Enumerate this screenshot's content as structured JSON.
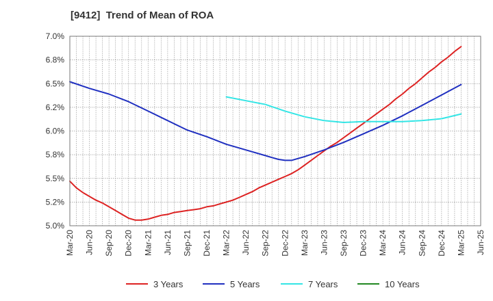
{
  "chart_data": {
    "type": "line",
    "title": "[9412]  Trend of Mean of ROA",
    "xlabel": "",
    "ylabel": "",
    "ylim": [
      5.0,
      7.0
    ],
    "y_ticks": [
      "5.0%",
      "5.2%",
      "5.5%",
      "5.8%",
      "6.0%",
      "6.2%",
      "6.5%",
      "6.8%",
      "7.0%"
    ],
    "x_ticks": [
      "Mar-20",
      "Jun-20",
      "Sep-20",
      "Dec-20",
      "Mar-21",
      "Jun-21",
      "Sep-21",
      "Dec-21",
      "Mar-22",
      "Jun-22",
      "Sep-22",
      "Dec-22",
      "Mar-23",
      "Jun-23",
      "Sep-23",
      "Dec-23",
      "Mar-24",
      "Jun-24",
      "Sep-24",
      "Dec-24",
      "Mar-25",
      "Jun-25"
    ],
    "grid": true,
    "legend_position": "bottom",
    "series": [
      {
        "name": "3 Years",
        "color": "#dd2222",
        "points": [
          [
            "Mar-20",
            5.47
          ],
          [
            "Apr-20",
            5.4
          ],
          [
            "May-20",
            5.35
          ],
          [
            "Jun-20",
            5.31
          ],
          [
            "Jul-20",
            5.27
          ],
          [
            "Aug-20",
            5.24
          ],
          [
            "Sep-20",
            5.2
          ],
          [
            "Oct-20",
            5.16
          ],
          [
            "Nov-20",
            5.12
          ],
          [
            "Dec-20",
            5.08
          ],
          [
            "Jan-21",
            5.06
          ],
          [
            "Feb-21",
            5.06
          ],
          [
            "Mar-21",
            5.07
          ],
          [
            "Apr-21",
            5.09
          ],
          [
            "May-21",
            5.11
          ],
          [
            "Jun-21",
            5.12
          ],
          [
            "Jul-21",
            5.14
          ],
          [
            "Aug-21",
            5.15
          ],
          [
            "Sep-21",
            5.16
          ],
          [
            "Oct-21",
            5.17
          ],
          [
            "Nov-21",
            5.18
          ],
          [
            "Dec-21",
            5.2
          ],
          [
            "Jan-22",
            5.21
          ],
          [
            "Feb-22",
            5.23
          ],
          [
            "Mar-22",
            5.25
          ],
          [
            "Apr-22",
            5.27
          ],
          [
            "May-22",
            5.3
          ],
          [
            "Jun-22",
            5.33
          ],
          [
            "Jul-22",
            5.36
          ],
          [
            "Aug-22",
            5.4
          ],
          [
            "Sep-22",
            5.43
          ],
          [
            "Oct-22",
            5.46
          ],
          [
            "Nov-22",
            5.49
          ],
          [
            "Dec-22",
            5.52
          ],
          [
            "Jan-23",
            5.55
          ],
          [
            "Feb-23",
            5.59
          ],
          [
            "Mar-23",
            5.64
          ],
          [
            "Apr-23",
            5.69
          ],
          [
            "May-23",
            5.74
          ],
          [
            "Jun-23",
            5.79
          ],
          [
            "Jul-23",
            5.84
          ],
          [
            "Aug-23",
            5.88
          ],
          [
            "Sep-23",
            5.93
          ],
          [
            "Oct-23",
            5.98
          ],
          [
            "Nov-23",
            6.03
          ],
          [
            "Dec-23",
            6.08
          ],
          [
            "Jan-24",
            6.13
          ],
          [
            "Feb-24",
            6.18
          ],
          [
            "Mar-24",
            6.23
          ],
          [
            "Apr-24",
            6.28
          ],
          [
            "May-24",
            6.34
          ],
          [
            "Jun-24",
            6.39
          ],
          [
            "Jul-24",
            6.45
          ],
          [
            "Aug-24",
            6.5
          ],
          [
            "Sep-24",
            6.56
          ],
          [
            "Oct-24",
            6.62
          ],
          [
            "Nov-24",
            6.67
          ],
          [
            "Dec-24",
            6.73
          ],
          [
            "Jan-25",
            6.78
          ],
          [
            "Feb-25",
            6.84
          ],
          [
            "Mar-25",
            6.89
          ]
        ]
      },
      {
        "name": "5 Years",
        "color": "#1f2fc0",
        "points": [
          [
            "Mar-20",
            6.52
          ],
          [
            "Jun-20",
            6.45
          ],
          [
            "Sep-20",
            6.39
          ],
          [
            "Dec-20",
            6.31
          ],
          [
            "Mar-21",
            6.21
          ],
          [
            "Jun-21",
            6.11
          ],
          [
            "Sep-21",
            6.01
          ],
          [
            "Dec-21",
            5.94
          ],
          [
            "Mar-22",
            5.86
          ],
          [
            "Jun-22",
            5.8
          ],
          [
            "Sep-22",
            5.74
          ],
          [
            "Oct-22",
            5.72
          ],
          [
            "Nov-22",
            5.7
          ],
          [
            "Dec-22",
            5.69
          ],
          [
            "Jan-23",
            5.69
          ],
          [
            "Feb-23",
            5.71
          ],
          [
            "Mar-23",
            5.73
          ],
          [
            "Jun-23",
            5.8
          ],
          [
            "Sep-23",
            5.88
          ],
          [
            "Dec-23",
            5.97
          ],
          [
            "Mar-24",
            6.06
          ],
          [
            "Jun-24",
            6.16
          ],
          [
            "Sep-24",
            6.27
          ],
          [
            "Dec-24",
            6.38
          ],
          [
            "Mar-25",
            6.49
          ]
        ]
      },
      {
        "name": "7 Years",
        "color": "#33e5e5",
        "points": [
          [
            "Mar-22",
            6.36
          ],
          [
            "Jun-22",
            6.32
          ],
          [
            "Sep-22",
            6.28
          ],
          [
            "Dec-22",
            6.21
          ],
          [
            "Mar-23",
            6.15
          ],
          [
            "Jun-23",
            6.11
          ],
          [
            "Sep-23",
            6.09
          ],
          [
            "Dec-23",
            6.1
          ],
          [
            "Mar-24",
            6.1
          ],
          [
            "Jun-24",
            6.1
          ],
          [
            "Sep-24",
            6.11
          ],
          [
            "Dec-24",
            6.13
          ],
          [
            "Mar-25",
            6.18
          ]
        ]
      },
      {
        "name": "10 Years",
        "color": "#228822",
        "points": []
      }
    ]
  }
}
